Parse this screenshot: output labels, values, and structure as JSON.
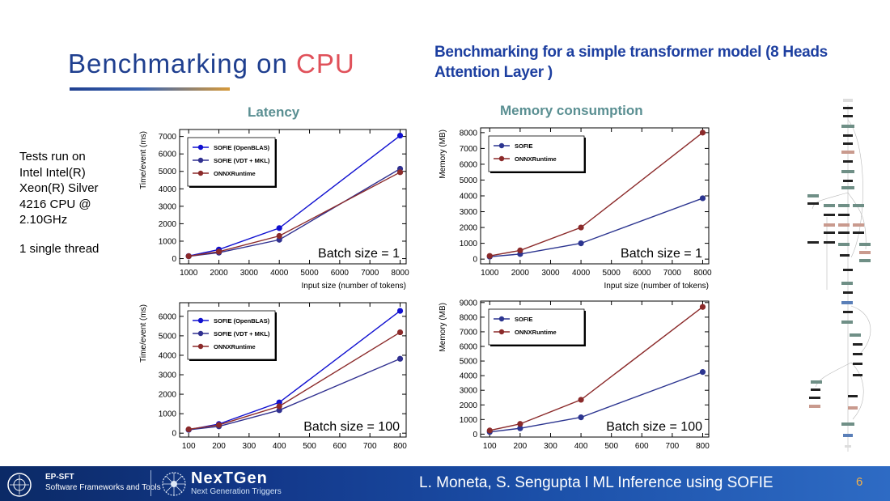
{
  "slide": {
    "title_main": "Benchmarking on ",
    "title_accent": "CPU",
    "subtitle": "Benchmarking for a simple transformer model (8 Heads Attention Layer )",
    "latency_heading": "Latency",
    "memory_heading": "Memory consumption",
    "note_lines": [
      "Tests run on",
      "Intel Intel(R)",
      "Xeon(R) Silver",
      "4216 CPU @",
      "2.10GHz"
    ],
    "note_thread": "1 single thread",
    "footer": {
      "ep_sft": "EP-SFT",
      "ep_sft_sub": "Software Frameworks and Tools",
      "nextgen": "NexTGen",
      "nextgen_sub": "Next Generation Triggers",
      "authors": "L. Moneta, S. Sengupta l   ML Inference using SOFIE",
      "page": "6"
    },
    "colors": {
      "title": "#1f3f8f",
      "accent": "#e0515a",
      "heading": "#5a8f92",
      "sofie_openblas": "#1010d0",
      "sofie_vdt": "#303090",
      "onnx": "#8b2a2a",
      "sofie": "#2c3590"
    }
  },
  "chart_data": [
    {
      "type": "line",
      "xlabel": "Input size (number of tokens)",
      "ylabel": "Time/event (ms)",
      "annotation": "Batch size = 1",
      "x": [
        1000,
        2000,
        4000,
        8000
      ],
      "xlim": [
        700,
        8200
      ],
      "ylim": [
        -300,
        7400
      ],
      "xticks": [
        1000,
        2000,
        3000,
        4000,
        5000,
        6000,
        7000,
        8000
      ],
      "yticks": [
        0,
        1000,
        2000,
        3000,
        4000,
        5000,
        6000,
        7000
      ],
      "legend": "top-left",
      "series": [
        {
          "name": "SOFIE (OpenBLAS)",
          "values": [
            150,
            520,
            1750,
            7050
          ],
          "color": "#1010d0"
        },
        {
          "name": "SOFIE (VDT + MKL)",
          "values": [
            130,
            340,
            1080,
            5150
          ],
          "color": "#303090"
        },
        {
          "name": "ONNXRuntime",
          "values": [
            140,
            400,
            1300,
            4950
          ],
          "color": "#8b2a2a"
        }
      ]
    },
    {
      "type": "line",
      "xlabel": "Input size (number of tokens)",
      "ylabel": "Memory  (MB)",
      "annotation": "Batch size = 1",
      "x": [
        1000,
        2000,
        4000,
        8000
      ],
      "xlim": [
        700,
        8200
      ],
      "ylim": [
        -300,
        8300
      ],
      "xticks": [
        1000,
        2000,
        3000,
        4000,
        5000,
        6000,
        7000,
        8000
      ],
      "yticks": [
        0,
        1000,
        2000,
        3000,
        4000,
        5000,
        6000,
        7000,
        8000
      ],
      "legend": "top-left",
      "series": [
        {
          "name": "SOFIE",
          "values": [
            150,
            320,
            1000,
            3850
          ],
          "color": "#2c3590"
        },
        {
          "name": "ONNXRuntime",
          "values": [
            200,
            550,
            2000,
            8000
          ],
          "color": "#8b2a2a"
        }
      ]
    },
    {
      "type": "line",
      "xlabel": "Input size (number of tokens)",
      "ylabel": "Time/event (ms)",
      "annotation": "Batch size = 100",
      "x": [
        100,
        200,
        400,
        800
      ],
      "xlim": [
        70,
        820
      ],
      "ylim": [
        -200,
        6700
      ],
      "xticks": [
        100,
        200,
        300,
        400,
        500,
        600,
        700,
        800
      ],
      "yticks": [
        0,
        1000,
        2000,
        3000,
        4000,
        5000,
        6000
      ],
      "legend": "top-left",
      "series": [
        {
          "name": "SOFIE (OpenBLAS)",
          "values": [
            180,
            470,
            1580,
            6280
          ],
          "color": "#1010d0"
        },
        {
          "name": "SOFIE (VDT + MKL)",
          "values": [
            170,
            350,
            1180,
            3820
          ],
          "color": "#303090"
        },
        {
          "name": "ONNXRuntime",
          "values": [
            200,
            420,
            1380,
            5180
          ],
          "color": "#8b2a2a"
        }
      ]
    },
    {
      "type": "line",
      "xlabel": "Input size (number of tokens)",
      "ylabel": "Memory  (MB)",
      "annotation": "Batch size = 100",
      "x": [
        100,
        200,
        400,
        800
      ],
      "xlim": [
        70,
        820
      ],
      "ylim": [
        -200,
        9100
      ],
      "xticks": [
        100,
        200,
        300,
        400,
        500,
        600,
        700,
        800
      ],
      "yticks": [
        0,
        1000,
        2000,
        3000,
        4000,
        5000,
        6000,
        7000,
        8000,
        9000
      ],
      "legend": "top-left",
      "series": [
        {
          "name": "SOFIE",
          "values": [
            150,
            400,
            1150,
            4250
          ],
          "color": "#2c3590"
        },
        {
          "name": "ONNXRuntime",
          "values": [
            250,
            700,
            2350,
            8700
          ],
          "color": "#8b2a2a"
        }
      ]
    }
  ]
}
